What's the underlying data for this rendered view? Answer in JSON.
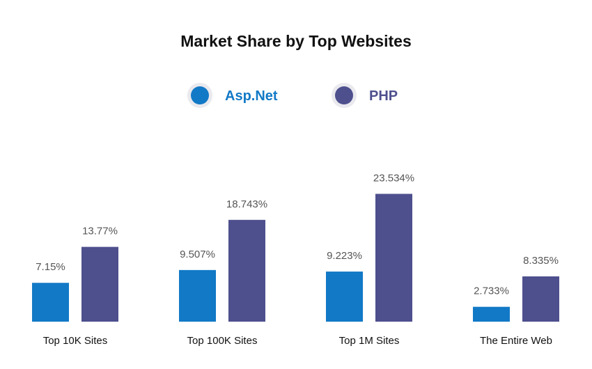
{
  "chart_data": {
    "type": "bar",
    "title": "Market Share by Top Websites",
    "categories": [
      "Top 10K Sites",
      "Top 100K Sites",
      "Top 1M Sites",
      "The Entire Web"
    ],
    "series": [
      {
        "name": "Asp.Net",
        "color": "#1279c6",
        "values": [
          7.15,
          9.507,
          9.223,
          2.733
        ],
        "labels": [
          "7.15%",
          "9.507%",
          "9.223%",
          "2.733%"
        ]
      },
      {
        "name": "PHP",
        "color": "#4e4f8d",
        "values": [
          13.77,
          18.743,
          23.534,
          8.335
        ],
        "labels": [
          "13.77%",
          "18.743%",
          "23.534%",
          "8.335%"
        ]
      }
    ],
    "legend_position": "top-center",
    "grid": false,
    "axes_visible": false
  }
}
